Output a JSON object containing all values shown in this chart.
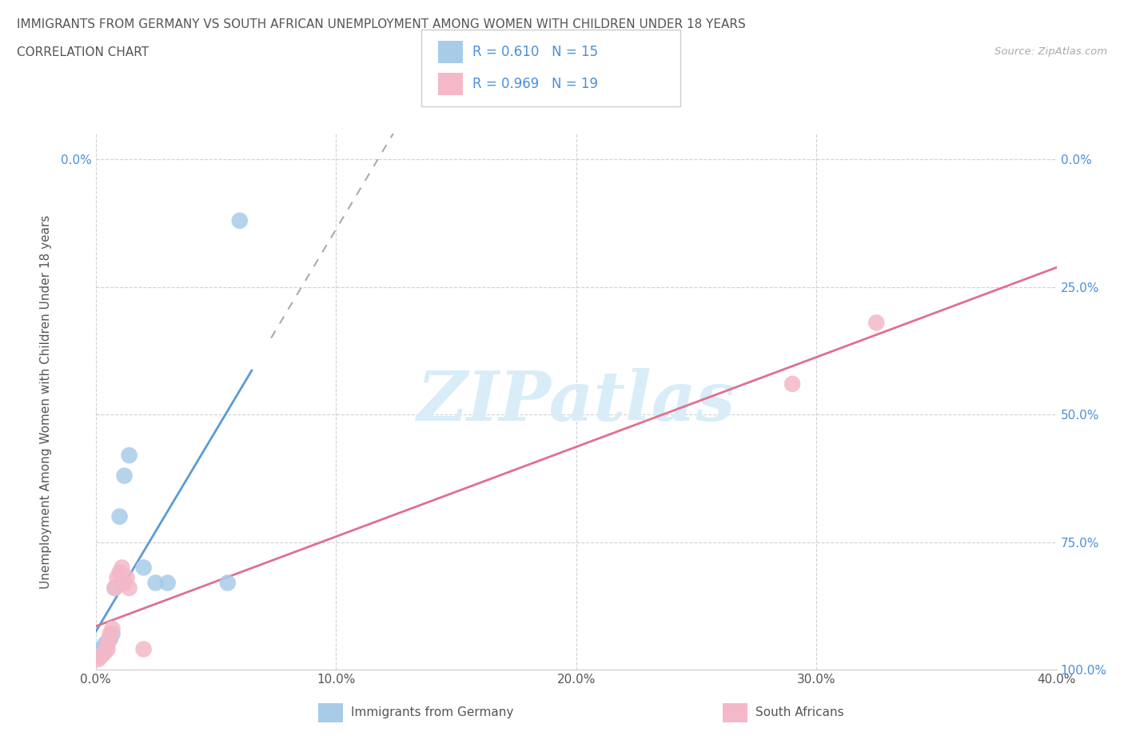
{
  "title_line1": "IMMIGRANTS FROM GERMANY VS SOUTH AFRICAN UNEMPLOYMENT AMONG WOMEN WITH CHILDREN UNDER 18 YEARS",
  "title_line2": "CORRELATION CHART",
  "source": "Source: ZipAtlas.com",
  "ylabel": "Unemployment Among Women with Children Under 18 years",
  "xlim": [
    0.0,
    0.4
  ],
  "ylim": [
    0.0,
    1.05
  ],
  "xtick_labels": [
    "0.0%",
    "10.0%",
    "20.0%",
    "30.0%",
    "40.0%"
  ],
  "xtick_vals": [
    0.0,
    0.1,
    0.2,
    0.3,
    0.4
  ],
  "ytick_right_labels": [
    "100.0%",
    "75.0%",
    "50.0%",
    "25.0%",
    "0.0%"
  ],
  "ytick_vals": [
    1.0,
    0.75,
    0.5,
    0.25,
    0.0
  ],
  "germany_x": [
    0.002,
    0.003,
    0.004,
    0.005,
    0.006,
    0.007,
    0.008,
    0.01,
    0.012,
    0.014,
    0.02,
    0.025,
    0.03,
    0.055,
    0.06
  ],
  "germany_y": [
    0.04,
    0.04,
    0.05,
    0.055,
    0.06,
    0.07,
    0.16,
    0.3,
    0.38,
    0.42,
    0.2,
    0.17,
    0.17,
    0.17,
    0.88
  ],
  "south_africa_x": [
    0.001,
    0.002,
    0.003,
    0.004,
    0.005,
    0.005,
    0.006,
    0.006,
    0.007,
    0.008,
    0.009,
    0.01,
    0.011,
    0.012,
    0.013,
    0.014,
    0.02,
    0.29,
    0.325
  ],
  "south_africa_y": [
    0.02,
    0.025,
    0.03,
    0.035,
    0.04,
    0.05,
    0.06,
    0.07,
    0.08,
    0.16,
    0.18,
    0.19,
    0.2,
    0.17,
    0.18,
    0.16,
    0.04,
    0.56,
    0.68
  ],
  "R_germany": 0.61,
  "N_germany": 15,
  "R_south_africa": 0.969,
  "N_south_africa": 19,
  "germany_scatter_color": "#a8cce8",
  "germany_line_color": "#5b9bd5",
  "south_africa_scatter_color": "#f4b8c8",
  "south_africa_line_color": "#e07090",
  "watermark_text": "ZIPatlas",
  "watermark_color": "#d8edf7",
  "background_color": "#ffffff",
  "grid_color": "#cccccc",
  "title_color": "#555555",
  "tick_label_color": "#4a90d9",
  "bottom_legend_germany": "Immigrants from Germany",
  "bottom_legend_sa": "South Africans"
}
